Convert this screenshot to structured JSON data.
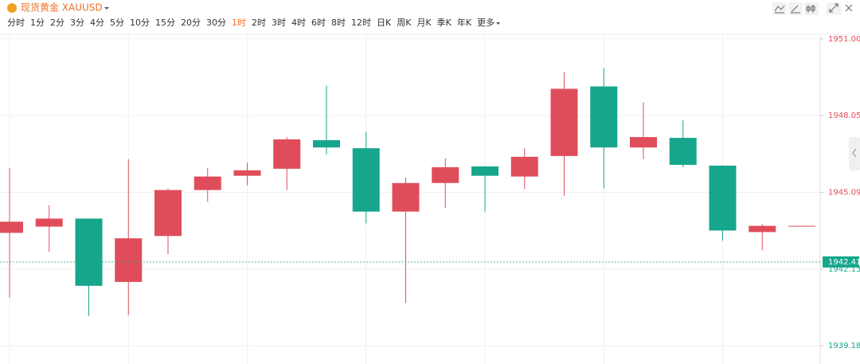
{
  "ui": {
    "symbol": "现货黄金 XAUUSD",
    "periods": [
      "分时",
      "1分",
      "2分",
      "3分",
      "4分",
      "5分",
      "10分",
      "15分",
      "20分",
      "30分",
      "1时",
      "2时",
      "3时",
      "4时",
      "6时",
      "8时",
      "12时",
      "日K",
      "周K",
      "月K",
      "季K",
      "年K",
      "更多"
    ],
    "active_period": 10,
    "active_color": "#f0702a"
  },
  "chart_data": {
    "type": "candlestick",
    "categories": [
      null,
      null,
      null,
      null,
      null,
      null,
      null,
      null,
      null,
      null,
      null,
      null,
      null,
      null,
      null,
      null,
      null,
      null,
      null,
      null,
      null
    ],
    "open": [
      1943.53,
      1943.77,
      1944.08,
      1941.64,
      1943.41,
      1945.18,
      1945.73,
      1946.0,
      1947.1,
      1946.79,
      1944.35,
      1945.45,
      1946.09,
      1945.7,
      1946.49,
      1949.17,
      1946.82,
      1947.19,
      1946.12,
      1943.56,
      1943.8
    ],
    "high": [
      1946.03,
      1944.6,
      1944.08,
      1946.37,
      1945.24,
      1946.03,
      1946.24,
      1947.22,
      1949.2,
      1947.43,
      1945.66,
      1946.4,
      1946.09,
      1946.79,
      1949.72,
      1949.87,
      1948.56,
      1947.86,
      1946.12,
      1943.87,
      1943.8
    ],
    "low": [
      1941.03,
      1942.8,
      1940.33,
      1940.36,
      1942.71,
      1944.72,
      1945.36,
      1945.18,
      1946.55,
      1943.9,
      1940.82,
      1944.48,
      1944.35,
      1945.21,
      1944.96,
      1945.24,
      1946.37,
      1946.06,
      1943.23,
      1942.86,
      1943.8
    ],
    "close": [
      1943.96,
      1944.08,
      1941.49,
      1943.32,
      1945.18,
      1945.7,
      1945.94,
      1947.13,
      1946.82,
      1944.35,
      1945.45,
      1946.06,
      1945.73,
      1946.46,
      1949.08,
      1946.82,
      1947.22,
      1946.15,
      1943.62,
      1943.8,
      1943.8
    ],
    "up_color": "#e04d5a",
    "down_color": "#16a68b",
    "ylim": [
      1939.0,
      1951.15
    ],
    "yticks": [
      {
        "value": 1951,
        "label": "1951.00"
      },
      1948.05,
      1945.09,
      1942.13,
      1939.18
    ],
    "current_price": 1942.41,
    "grid": true
  }
}
